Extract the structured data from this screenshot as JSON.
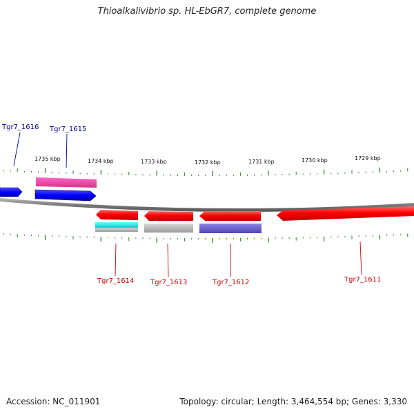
{
  "title": "Thioalkalivibrio sp. HL-EbGR7, complete genome",
  "footer": {
    "accession": "Accession: NC_011901",
    "summary": "Topology: circular; Length: 3,464,554 bp; Genes: 3,330"
  },
  "ruler": {
    "labels": [
      "1735 kbp",
      "1734 kbp",
      "1733 kbp",
      "1732 kbp",
      "1731 kbp",
      "1730 kbp",
      "1729 kbp"
    ]
  },
  "genes": {
    "top": [
      {
        "name": "Tgr7_1616",
        "color": "#00008b"
      },
      {
        "name": "Tgr7_1615",
        "color": "#00008b"
      }
    ],
    "bottom": [
      {
        "name": "Tgr7_1614",
        "color": "#cc0000"
      },
      {
        "name": "Tgr7_1613",
        "color": "#cc0000"
      },
      {
        "name": "Tgr7_1612",
        "color": "#cc0000"
      },
      {
        "name": "Tgr7_1611",
        "color": "#cc0000"
      }
    ]
  },
  "colors": {
    "forward_cds": "#0000ff",
    "reverse_cds": "#ff0000",
    "magenta_feature": "#e8449a",
    "cyan_feature": "#22e0e6",
    "gray_feature": "#b8b8b8",
    "purple_feature": "#6a5acd",
    "backbone": "#8a8a8a",
    "ticks": "#1a8a1a"
  }
}
